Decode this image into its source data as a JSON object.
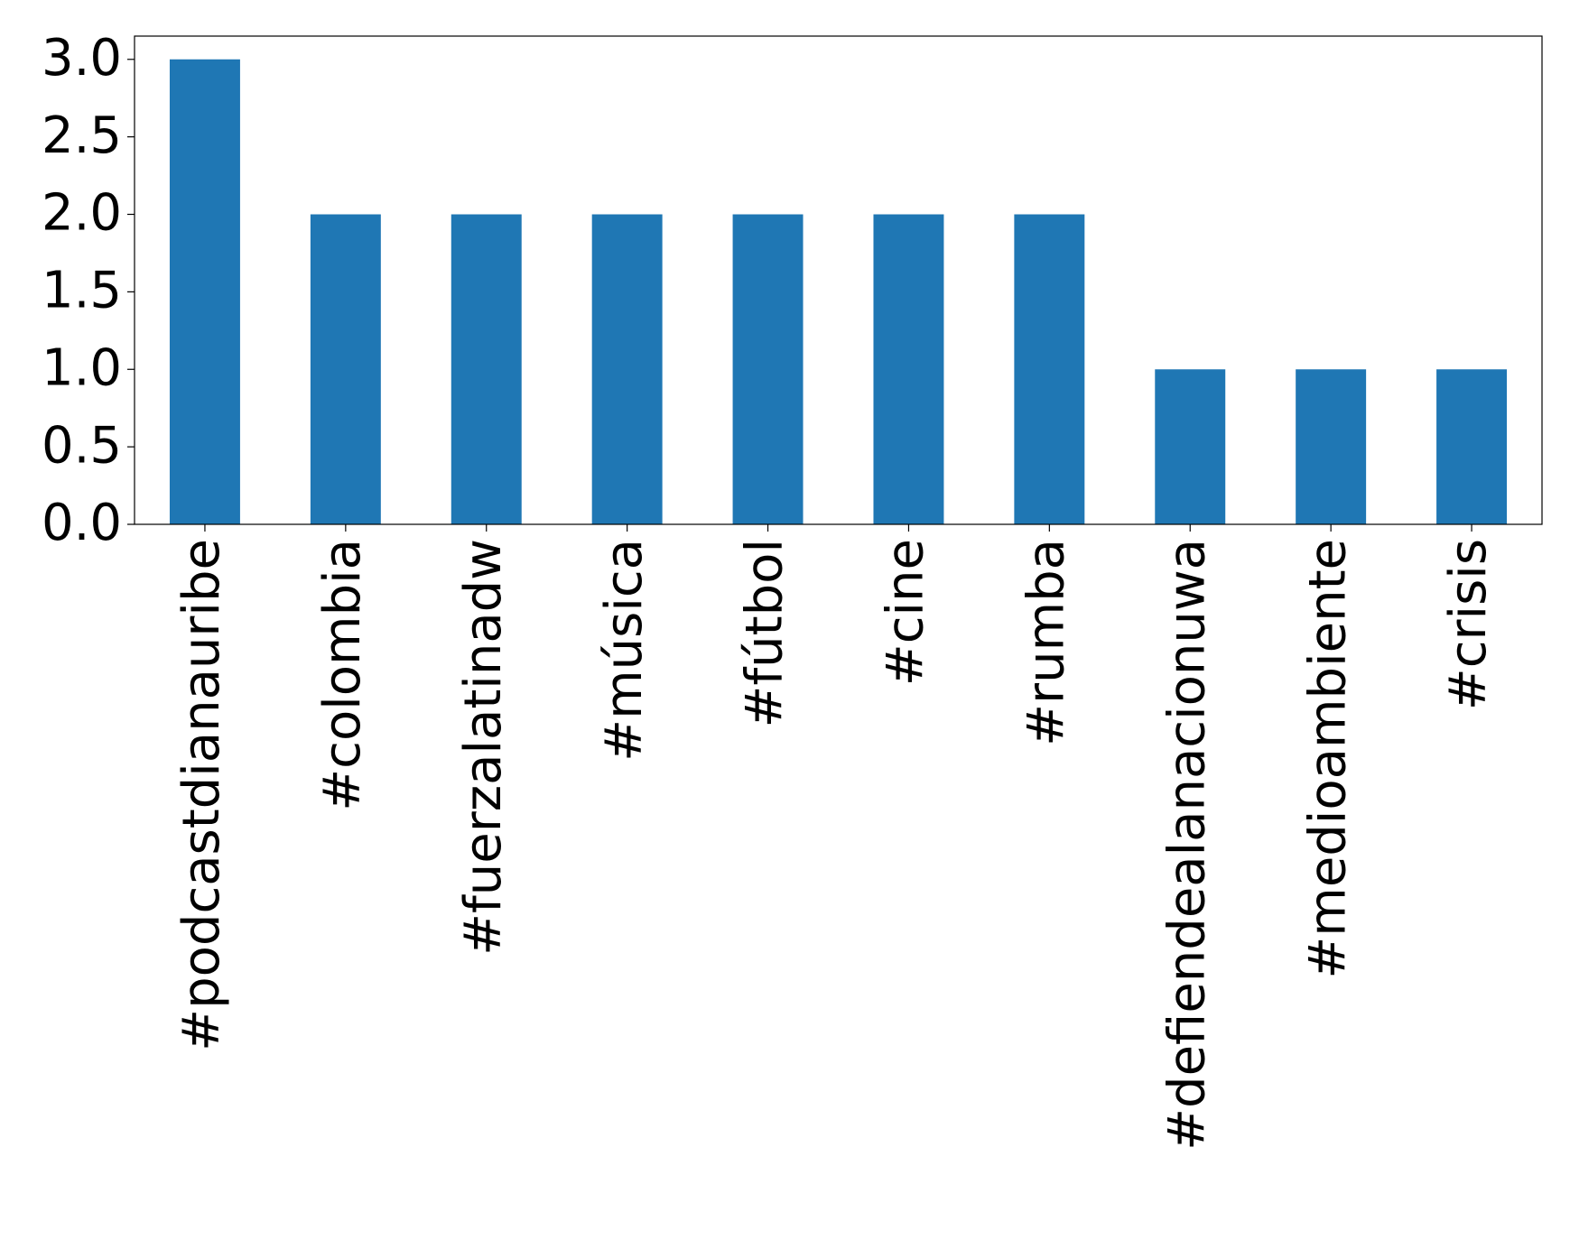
{
  "chart_data": {
    "type": "bar",
    "categories": [
      "#podcastdianauribe",
      "#colombia",
      "#fuerzalatinadw",
      "#música",
      "#fútbol",
      "#cine",
      "#rumba",
      "#defiendealanacionuwa",
      "#medioambiente",
      "#crisis"
    ],
    "values": [
      3,
      2,
      2,
      2,
      2,
      2,
      2,
      1,
      1,
      1
    ],
    "color": "#1f77b4",
    "ylim": [
      0,
      3.15
    ],
    "yticks": [
      {
        "value": 0,
        "label": "0.0"
      },
      0.5,
      {
        "value": 1,
        "label": "1.0"
      },
      1.5,
      {
        "value": 2,
        "label": "2.0"
      },
      2.5,
      {
        "value": 3,
        "label": "3.0"
      }
    ]
  }
}
